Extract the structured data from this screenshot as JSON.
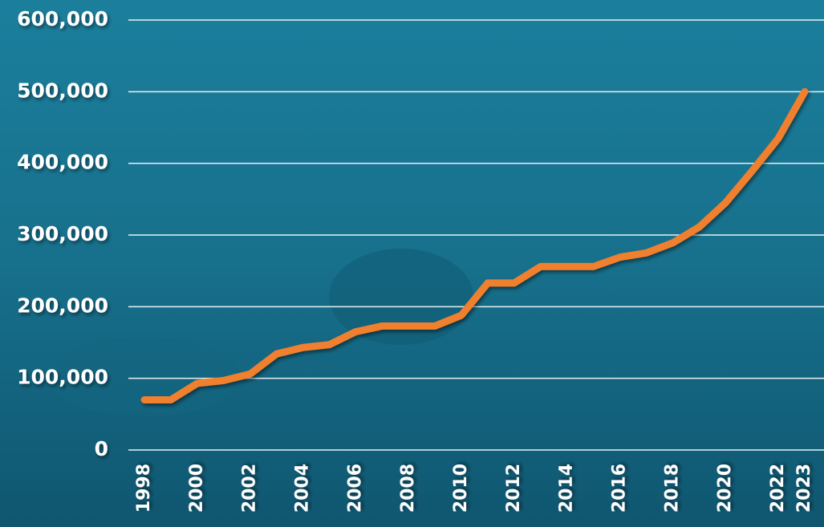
{
  "chart_data": {
    "type": "line",
    "x": [
      1998,
      1999,
      2000,
      2001,
      2002,
      2003,
      2004,
      2005,
      2006,
      2007,
      2008,
      2009,
      2010,
      2011,
      2012,
      2013,
      2014,
      2015,
      2016,
      2017,
      2018,
      2019,
      2020,
      2021,
      2022,
      2023
    ],
    "values": [
      70000,
      70000,
      93000,
      97000,
      106000,
      134000,
      143000,
      147000,
      165000,
      173000,
      173000,
      173000,
      188000,
      233000,
      233000,
      256000,
      256000,
      256000,
      269000,
      275000,
      289000,
      311000,
      345000,
      389000,
      435000,
      500000
    ],
    "color": "#f07f2f",
    "xlim": [
      1998,
      2023
    ],
    "xticks": [
      1998,
      2000,
      2002,
      2004,
      2006,
      2008,
      2010,
      2012,
      2014,
      2016,
      2018,
      2020,
      2022,
      2023
    ],
    "ylim": [
      0,
      600000
    ],
    "yticks": [
      0,
      {
        "value": 100000,
        "label": "100,000"
      },
      {
        "value": 200000,
        "label": "200,000"
      },
      {
        "value": 300000,
        "label": "300,000"
      },
      {
        "value": 400000,
        "label": "400,000"
      },
      {
        "value": 500000,
        "label": "500,000"
      },
      {
        "value": 600000,
        "label": "600,000"
      }
    ],
    "grid": true
  }
}
